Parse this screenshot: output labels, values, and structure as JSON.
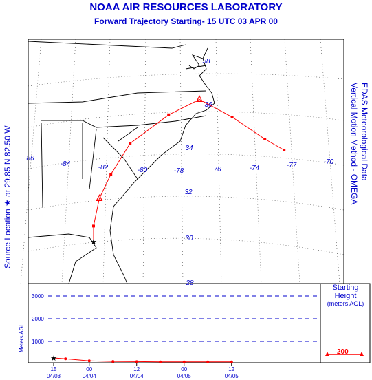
{
  "header": {
    "title": "NOAA AIR RESOURCES LABORATORY",
    "subtitle": "Forward Trajectory   Starting- 15 UTC 03 APR 00"
  },
  "side_left": "Source Location ★  at   29.85 N   82.50 W",
  "side_right_1": "EDAS Meteorological Data",
  "side_right_2": "Vertical Motion Method - OMEGA",
  "starting_height": {
    "title": "Starting",
    "subtitle": "Height",
    "units": "(meters AGL)",
    "value": "200"
  },
  "colors": {
    "text": "#0000cc",
    "trajectory": "#ff0000",
    "map": "#000000",
    "grid": "#0000cc"
  },
  "chart_data": [
    {
      "type": "line",
      "title": "Forward Trajectory map",
      "lat_labels": [
        "38",
        "36",
        "34",
        "32",
        "30",
        "28"
      ],
      "lon_labels": [
        "86",
        "-84",
        "-82",
        "-80",
        "-78",
        "76",
        "-74",
        "-77",
        "-70"
      ],
      "source": {
        "lat": 29.85,
        "lon": -82.5
      },
      "trajectory_points": [
        {
          "lon": -82.5,
          "lat": 29.85
        },
        {
          "lon": -82.5,
          "lat": 30.55
        },
        {
          "lon": -82.2,
          "lat": 31.8
        },
        {
          "lon": -81.6,
          "lat": 32.9
        },
        {
          "lon": -80.6,
          "lat": 34.3
        },
        {
          "lon": -78.6,
          "lat": 35.6
        },
        {
          "lon": -77.0,
          "lat": 36.3
        },
        {
          "lon": -75.3,
          "lat": 35.5
        },
        {
          "lon": -73.6,
          "lat": 34.5
        },
        {
          "lon": -72.6,
          "lat": 34.0
        }
      ]
    },
    {
      "type": "line",
      "ylabel": "Meters AGL",
      "y_ticks": [
        "1000",
        "2000",
        "3000"
      ],
      "ylim": [
        0,
        3500
      ],
      "x_ticks": [
        {
          "top": "15",
          "bottom": "04/03"
        },
        {
          "top": "00",
          "bottom": "04/04"
        },
        {
          "top": "12",
          "bottom": "04/04"
        },
        {
          "top": "00",
          "bottom": "04/05"
        },
        {
          "top": "12",
          "bottom": "04/05"
        }
      ],
      "series": [
        {
          "hours": [
            0,
            3,
            9,
            15,
            21,
            27,
            33,
            39,
            45
          ],
          "values": [
            200,
            160,
            60,
            30,
            20,
            10,
            10,
            10,
            10
          ]
        }
      ]
    }
  ]
}
